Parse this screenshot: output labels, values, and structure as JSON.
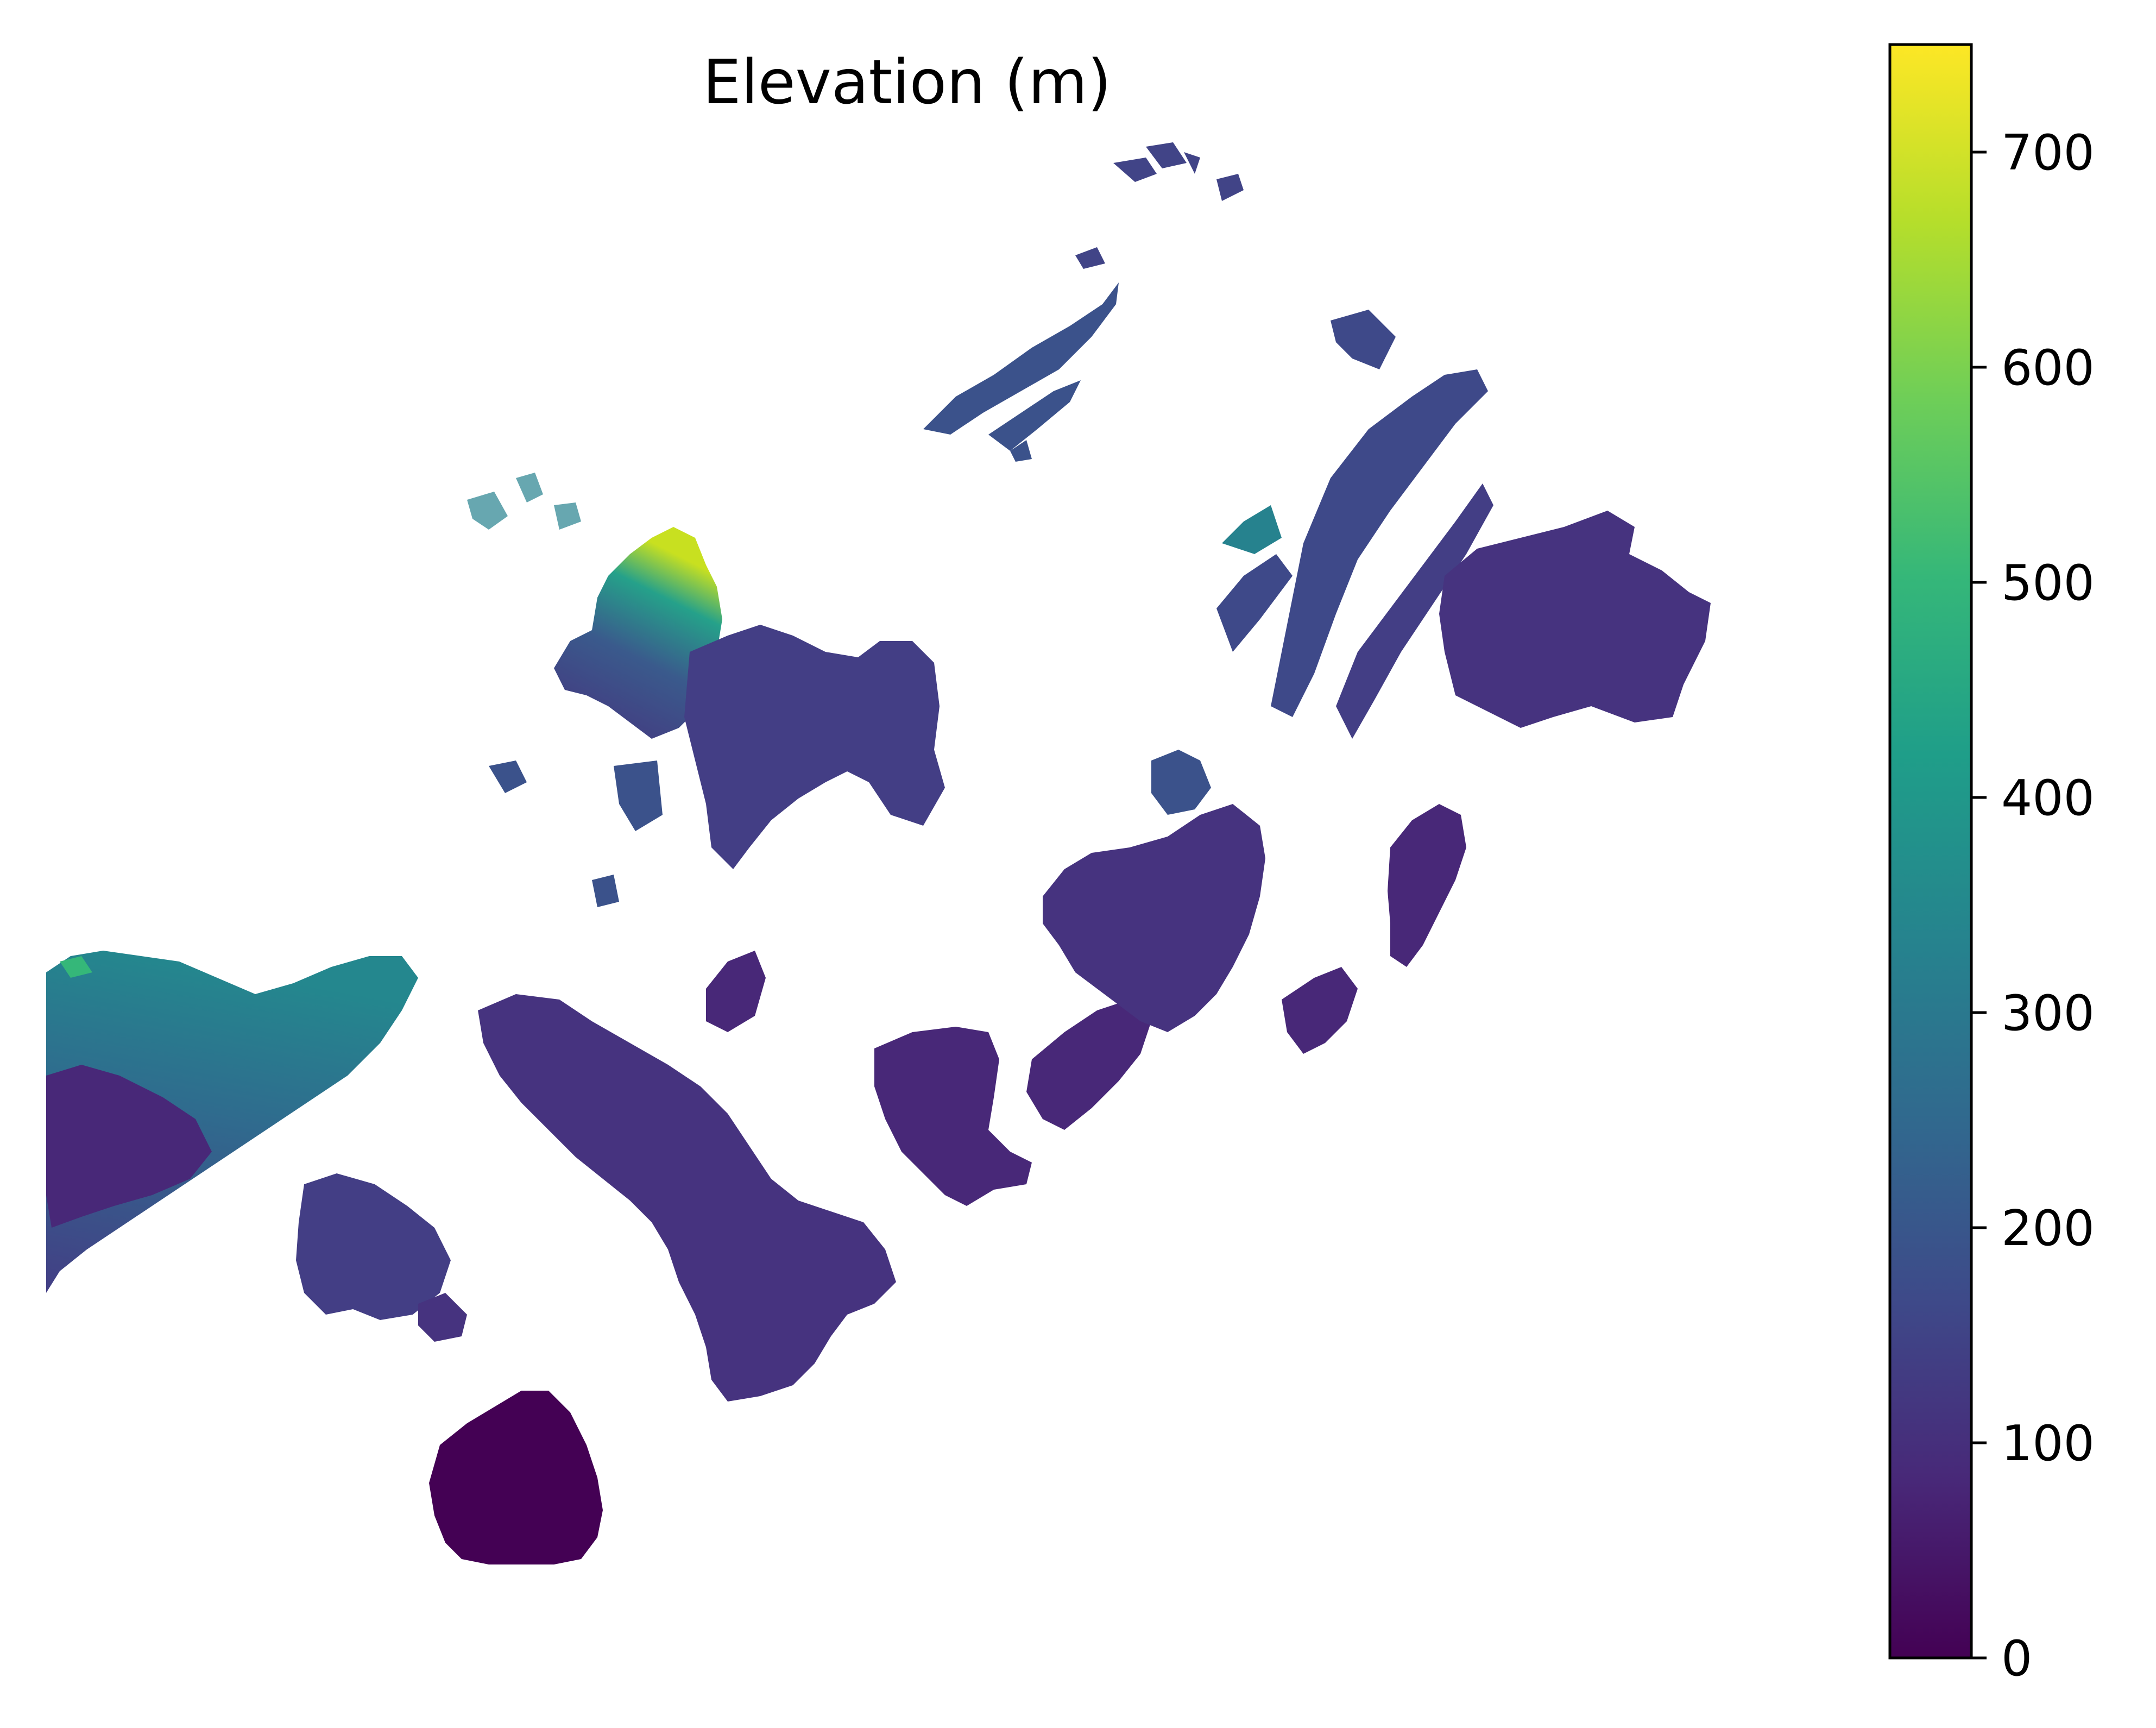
{
  "map": {
    "title": "Elevation (m)",
    "colormap": "viridis",
    "colormap_stops": [
      "#440154",
      "#482878",
      "#3e4989",
      "#31688e",
      "#26828e",
      "#1f9e89",
      "#35b779",
      "#6ece58",
      "#b5de2b",
      "#fde725"
    ]
  },
  "colorbar": {
    "min": 0,
    "max": 750,
    "ticks": [
      {
        "value": 0,
        "label": "0"
      },
      {
        "value": 100,
        "label": "100"
      },
      {
        "value": 200,
        "label": "200"
      },
      {
        "value": 300,
        "label": "300"
      },
      {
        "value": 400,
        "label": "400"
      },
      {
        "value": 500,
        "label": "500"
      },
      {
        "value": 600,
        "label": "600"
      },
      {
        "value": 700,
        "label": "700"
      }
    ]
  }
}
